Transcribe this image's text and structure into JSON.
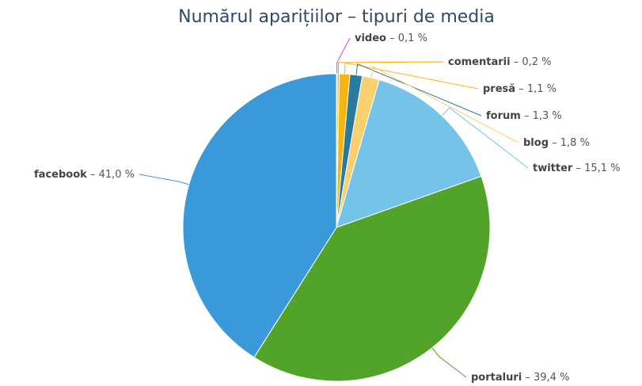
{
  "chart_data": {
    "type": "pie",
    "title": "Numărul aparițiilor – tipuri de media",
    "label_separator": "–",
    "categories": [
      "video",
      "comentarii",
      "presă",
      "forum",
      "blog",
      "twitter",
      "portaluri",
      "facebook"
    ],
    "values": [
      0.1,
      0.2,
      1.1,
      1.3,
      1.8,
      15.1,
      39.4,
      41.0
    ],
    "value_labels": [
      "0,1 %",
      "0,2 %",
      "1,1 %",
      "1,3 %",
      "1,8 %",
      "15,1 %",
      "39,4 %",
      "41,0 %"
    ],
    "colors": [
      "#c94fc9",
      "#f7a800",
      "#f9b40f",
      "#2a7a9b",
      "#f9d070",
      "#74c4ea",
      "#52a329",
      "#3a9ad9"
    ]
  }
}
